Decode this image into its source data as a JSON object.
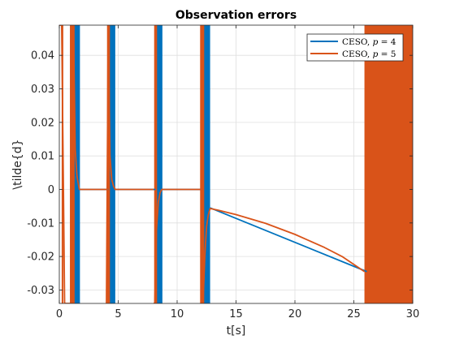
{
  "chart_data": {
    "type": "line",
    "title": "Observation errors",
    "xlabel": "t[s]",
    "ylabel": "\\tilde{d}",
    "xlim": [
      0,
      30
    ],
    "ylim": [
      -0.034,
      0.049
    ],
    "xticks": [
      0,
      5,
      10,
      15,
      20,
      25,
      30
    ],
    "xtick_labels": [
      "0",
      "5",
      "10",
      "15",
      "20",
      "25",
      "30"
    ],
    "yticks": [
      -0.03,
      -0.02,
      -0.01,
      0,
      0.01,
      0.02,
      0.03,
      0.04
    ],
    "ytick_labels": [
      "-0.03",
      "-0.02",
      "-0.01",
      "0",
      "0.01",
      "0.02",
      "0.03",
      "0.04"
    ],
    "grid": true,
    "legend_position": "top-right",
    "series": [
      {
        "name": "CESO, p = 4",
        "legend_main": "CESO, ",
        "legend_var": "p",
        "legend_tail": " = 4",
        "color": "#0072BD",
        "oscillation_bursts": [
          [
            1.05,
            1.75
          ],
          [
            4.15,
            4.75
          ],
          [
            8.15,
            8.75
          ],
          [
            12.0,
            12.8
          ],
          [
            26.1,
            26.4
          ]
        ],
        "segments": [
          {
            "x": [
              1.75,
              4.15
            ],
            "y": [
              0,
              0
            ]
          },
          {
            "x": [
              4.75,
              8.15
            ],
            "y": [
              0,
              0
            ]
          },
          {
            "x": [
              8.75,
              12.0
            ],
            "y": [
              0,
              0
            ]
          },
          {
            "x": [
              12.8,
              26.1
            ],
            "y": [
              -0.0055,
              -0.0245
            ]
          }
        ]
      },
      {
        "name": "CESO, p = 5",
        "legend_main": "CESO, ",
        "legend_var": "p",
        "legend_tail": " = 5",
        "color": "#D95319",
        "oscillation_bursts": [
          [
            0.2,
            0.3
          ],
          [
            0.9,
            1.3
          ],
          [
            4.05,
            4.3
          ],
          [
            8.05,
            8.3
          ],
          [
            11.95,
            12.3
          ],
          [
            25.9,
            30.0
          ]
        ],
        "segments": [
          {
            "x": [
              0.0,
              0.2,
              0.35,
              0.45,
              0.6,
              0.75,
              1.0,
              1.2,
              1.35,
              1.5,
              1.6,
              1.7,
              1.8,
              2.0,
              4.0
            ],
            "y": [
              0.049,
              0.049,
              0.0,
              -0.034,
              -0.034,
              -0.034,
              -0.034,
              0.049,
              0.012,
              0.004,
              0.002,
              0.0,
              0.0,
              0.0,
              0.0
            ]
          },
          {
            "x": [
              4.0,
              4.15,
              4.3,
              4.45,
              4.6,
              4.75,
              8.0
            ],
            "y": [
              -0.034,
              0.049,
              0.01,
              0.003,
              0.001,
              0.0,
              0.0
            ]
          },
          {
            "x": [
              8.0,
              8.1,
              8.25,
              8.4,
              8.55,
              8.7,
              8.85,
              12.0
            ],
            "y": [
              -0.034,
              -0.034,
              -0.012,
              -0.004,
              -0.001,
              0.0,
              0.0,
              0.0
            ]
          },
          {
            "x": [
              12.05,
              12.2,
              12.35,
              12.5,
              12.65,
              12.8,
              13.5,
              15,
              17.5,
              20,
              22.5,
              24,
              25.9
            ],
            "y": [
              -0.034,
              -0.034,
              -0.02,
              -0.011,
              -0.0075,
              -0.0057,
              -0.0062,
              -0.0075,
              -0.0101,
              -0.0134,
              -0.0173,
              -0.02,
              -0.0245
            ]
          }
        ]
      }
    ]
  }
}
